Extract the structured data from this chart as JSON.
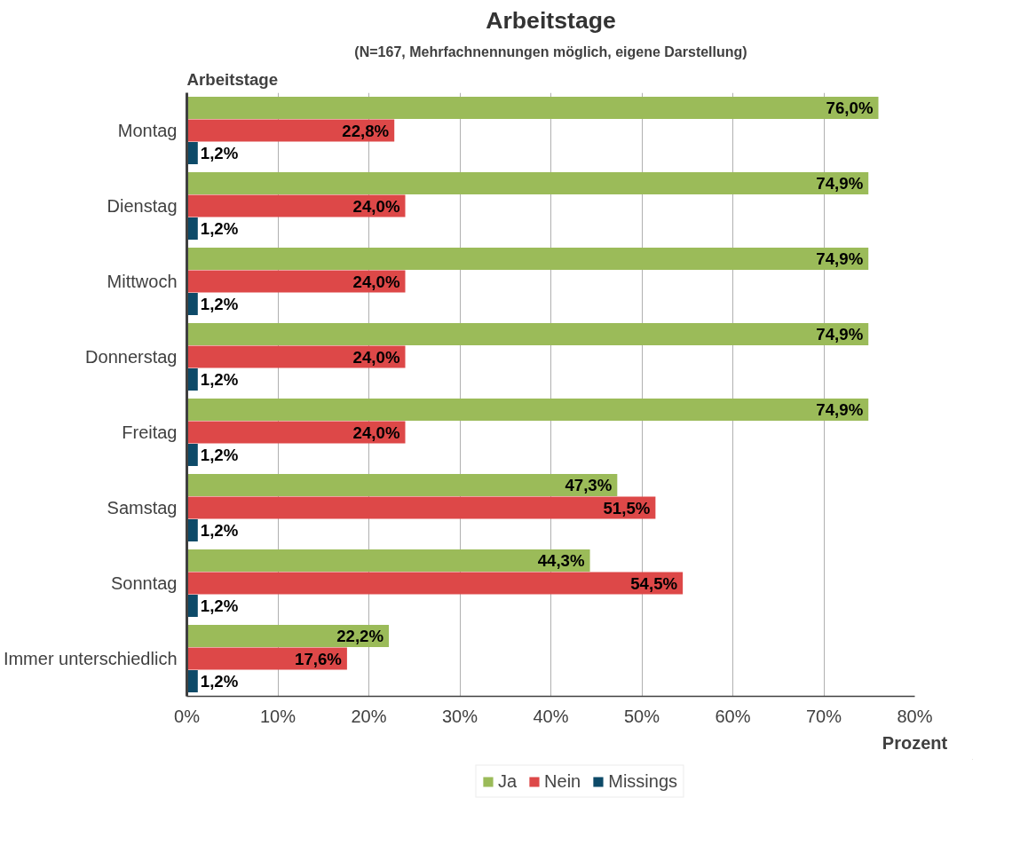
{
  "chart_data": {
    "type": "bar",
    "orientation": "horizontal",
    "title": "Arbeitstage",
    "subtitle": "(N=167, Mehrfachnennungen möglich, eigene Darstellung)",
    "ylabel": "Arbeitstage",
    "xlabel": "Prozent",
    "categories": [
      "Montag",
      "Dienstag",
      "Mittwoch",
      "Donnerstag",
      "Freitag",
      "Samstag",
      "Sonntag",
      "Immer unterschiedlich"
    ],
    "series": [
      {
        "name": "Ja",
        "color": "#9bbb59",
        "values": [
          76.0,
          74.9,
          74.9,
          74.9,
          74.9,
          47.3,
          44.3,
          22.2
        ],
        "value_labels": [
          "76,0%",
          "74,9%",
          "74,9%",
          "74,9%",
          "74,9%",
          "47,3%",
          "44,3%",
          "22,2%"
        ]
      },
      {
        "name": "Nein",
        "color": "#dd4848",
        "values": [
          22.8,
          24.0,
          24.0,
          24.0,
          24.0,
          51.5,
          54.5,
          17.6
        ],
        "value_labels": [
          "22,8%",
          "24,0%",
          "24,0%",
          "24,0%",
          "24,0%",
          "51,5%",
          "54,5%",
          "17,6%"
        ]
      },
      {
        "name": "Missings",
        "color": "#0d4a68",
        "values": [
          1.2,
          1.2,
          1.2,
          1.2,
          1.2,
          1.2,
          1.2,
          1.2
        ],
        "value_labels": [
          "1,2%",
          "1,2%",
          "1,2%",
          "1,2%",
          "1,2%",
          "1,2%",
          "1,2%",
          "1,2%"
        ]
      }
    ],
    "xlim": [
      0,
      80
    ],
    "xticks": [
      {
        "value": 0,
        "label": "0%"
      },
      {
        "value": 10,
        "label": "10%"
      },
      {
        "value": 20,
        "label": "20%"
      },
      {
        "value": 30,
        "label": "30%"
      },
      {
        "value": 40,
        "label": "40%"
      },
      {
        "value": 50,
        "label": "50%"
      },
      {
        "value": 60,
        "label": "60%"
      },
      {
        "value": 70,
        "label": "70%"
      },
      {
        "value": 80,
        "label": "80%"
      }
    ],
    "grid": "x",
    "legend": "bottom"
  }
}
